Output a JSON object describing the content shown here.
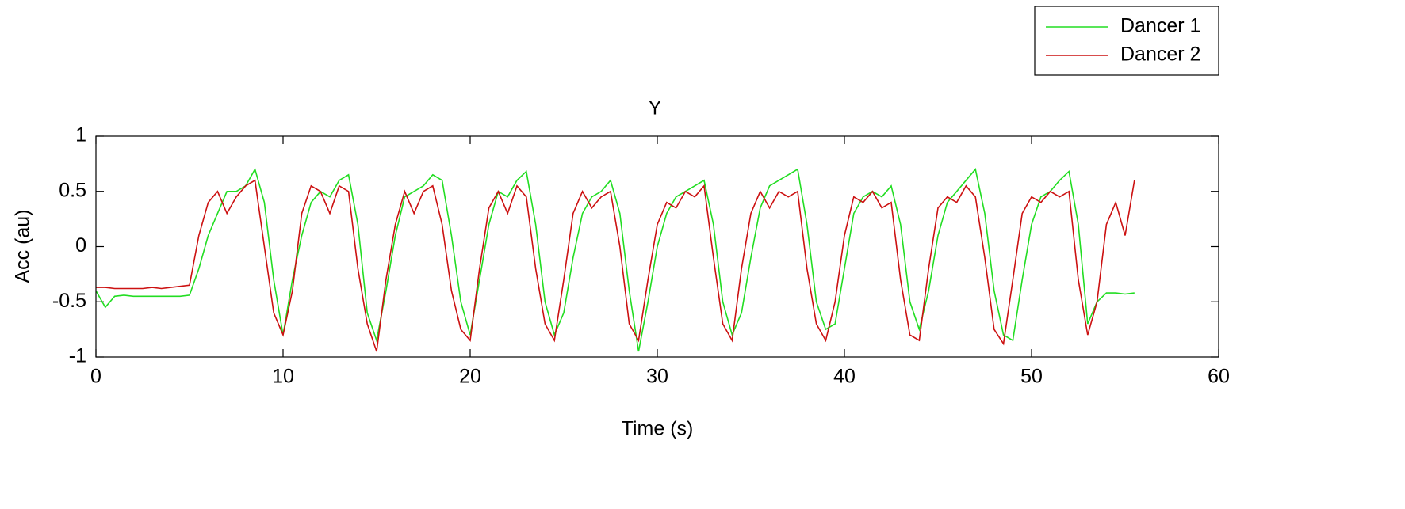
{
  "chart_data": {
    "type": "line",
    "title": "Y",
    "x_label": "Time (s)",
    "y_label": "Acc (au)",
    "x": [
      0,
      0.5,
      1,
      1.5,
      2,
      2.5,
      3,
      3.5,
      4,
      4.5,
      5,
      5.5,
      6,
      6.5,
      7,
      7.5,
      8,
      8.5,
      9,
      9.5,
      10,
      10.5,
      11,
      11.5,
      12,
      12.5,
      13,
      13.5,
      14,
      14.5,
      15,
      15.5,
      16,
      16.5,
      17,
      17.5,
      18,
      18.5,
      19,
      19.5,
      20,
      20.5,
      21,
      21.5,
      22,
      22.5,
      23,
      23.5,
      24,
      24.5,
      25,
      25.5,
      26,
      26.5,
      27,
      27.5,
      28,
      28.5,
      29,
      29.5,
      30,
      30.5,
      31,
      31.5,
      32,
      32.5,
      33,
      33.5,
      34,
      34.5,
      35,
      35.5,
      36,
      36.5,
      37,
      37.5,
      38,
      38.5,
      39,
      39.5,
      40,
      40.5,
      41,
      41.5,
      42,
      42.5,
      43,
      43.5,
      44,
      44.5,
      45,
      45.5,
      46,
      46.5,
      47,
      47.5,
      48,
      48.5,
      49,
      49.5,
      50,
      50.5,
      51,
      51.5,
      52,
      52.5,
      53,
      53.5,
      54,
      54.5,
      55,
      55.5
    ],
    "series": [
      {
        "name": "Dancer 1",
        "color": "#22dd22",
        "values": [
          -0.4,
          -0.55,
          -0.45,
          -0.44,
          -0.45,
          -0.45,
          -0.45,
          -0.45,
          -0.45,
          -0.45,
          -0.44,
          -0.2,
          0.1,
          0.3,
          0.5,
          0.5,
          0.55,
          0.7,
          0.4,
          -0.3,
          -0.8,
          -0.3,
          0.1,
          0.4,
          0.5,
          0.45,
          0.6,
          0.65,
          0.2,
          -0.6,
          -0.85,
          -0.4,
          0.1,
          0.45,
          0.5,
          0.55,
          0.65,
          0.6,
          0.1,
          -0.5,
          -0.8,
          -0.3,
          0.2,
          0.5,
          0.45,
          0.6,
          0.68,
          0.2,
          -0.5,
          -0.8,
          -0.6,
          -0.1,
          0.3,
          0.45,
          0.5,
          0.6,
          0.3,
          -0.4,
          -0.95,
          -0.5,
          0,
          0.3,
          0.45,
          0.5,
          0.55,
          0.6,
          0.2,
          -0.5,
          -0.8,
          -0.6,
          -0.1,
          0.35,
          0.55,
          0.6,
          0.65,
          0.7,
          0.2,
          -0.5,
          -0.75,
          -0.7,
          -0.2,
          0.3,
          0.45,
          0.5,
          0.45,
          0.55,
          0.2,
          -0.5,
          -0.75,
          -0.4,
          0.1,
          0.4,
          0.5,
          0.6,
          0.7,
          0.3,
          -0.4,
          -0.8,
          -0.85,
          -0.3,
          0.2,
          0.45,
          0.5,
          0.6,
          0.68,
          0.2,
          -0.7,
          -0.5,
          -0.42,
          -0.42,
          -0.43,
          -0.42
        ]
      },
      {
        "name": "Dancer 2",
        "color": "#cc1111",
        "values": [
          -0.37,
          -0.37,
          -0.38,
          -0.38,
          -0.38,
          -0.38,
          -0.37,
          -0.38,
          -0.37,
          -0.36,
          -0.35,
          0.1,
          0.4,
          0.5,
          0.3,
          0.45,
          0.55,
          0.6,
          0,
          -0.6,
          -0.8,
          -0.4,
          0.3,
          0.55,
          0.5,
          0.3,
          0.55,
          0.5,
          -0.2,
          -0.7,
          -0.95,
          -0.3,
          0.2,
          0.5,
          0.3,
          0.5,
          0.55,
          0.2,
          -0.4,
          -0.75,
          -0.85,
          -0.2,
          0.35,
          0.5,
          0.3,
          0.55,
          0.45,
          -0.2,
          -0.7,
          -0.85,
          -0.3,
          0.3,
          0.5,
          0.35,
          0.45,
          0.5,
          0,
          -0.7,
          -0.85,
          -0.3,
          0.2,
          0.4,
          0.35,
          0.5,
          0.45,
          0.55,
          -0.1,
          -0.7,
          -0.85,
          -0.2,
          0.3,
          0.5,
          0.35,
          0.5,
          0.45,
          0.5,
          -0.2,
          -0.7,
          -0.85,
          -0.5,
          0.1,
          0.45,
          0.4,
          0.5,
          0.35,
          0.4,
          -0.3,
          -0.8,
          -0.85,
          -0.2,
          0.35,
          0.45,
          0.4,
          0.55,
          0.45,
          -0.1,
          -0.75,
          -0.88,
          -0.3,
          0.3,
          0.45,
          0.4,
          0.5,
          0.45,
          0.5,
          -0.3,
          -0.8,
          -0.5,
          0.2,
          0.4,
          0.1,
          0.6
        ]
      }
    ],
    "xlim": [
      0,
      60
    ],
    "xticks": [
      0,
      10,
      20,
      30,
      40,
      50,
      60
    ],
    "ylim": [
      -1,
      1
    ],
    "yticks": [
      -1,
      -0.5,
      0,
      0.5,
      1
    ],
    "grid": false,
    "legend": "top-right"
  }
}
